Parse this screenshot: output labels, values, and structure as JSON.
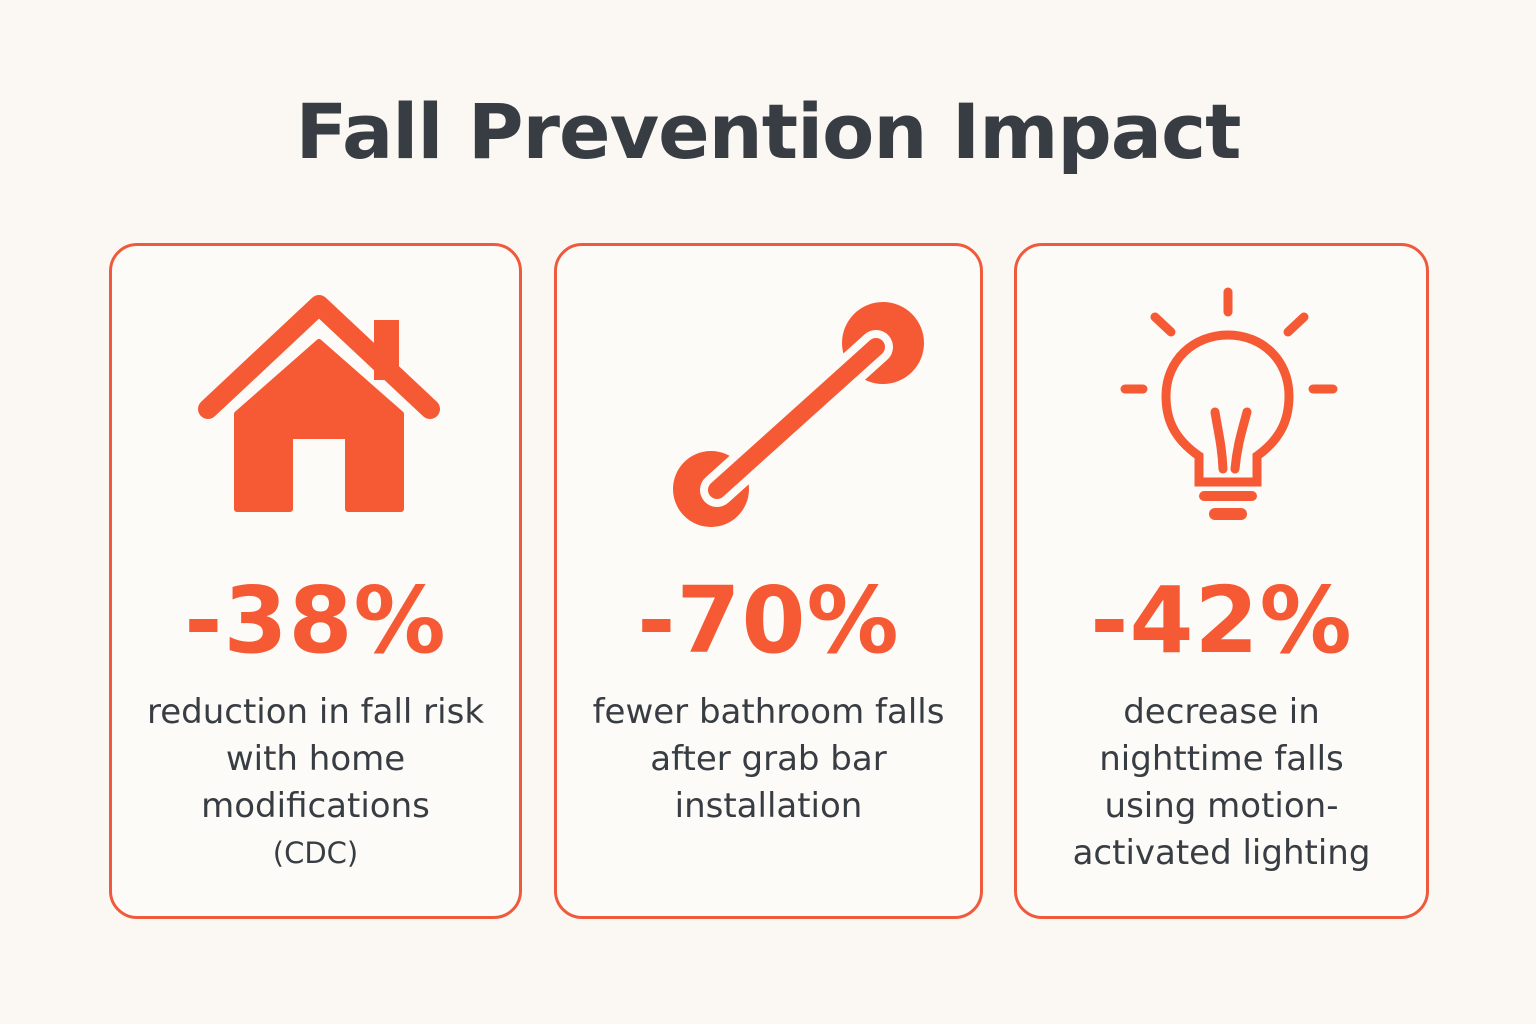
{
  "title": "Fall Prevention Impact",
  "accent_color": "#f55a35",
  "text_color": "#373d42",
  "cards": [
    {
      "icon": "house-icon",
      "stat": "-38%",
      "lines": [
        "reduction in fall risk",
        "with home",
        "modifications",
        "(CDC)"
      ]
    },
    {
      "icon": "grab-bar-icon",
      "stat": "-70%",
      "lines": [
        "fewer bathroom falls",
        "after grab bar",
        "installation"
      ]
    },
    {
      "icon": "light-bulb-icon",
      "stat": "-42%",
      "lines": [
        "decrease in",
        "nighttime falls",
        "using motion-",
        "activated lighting"
      ]
    }
  ]
}
